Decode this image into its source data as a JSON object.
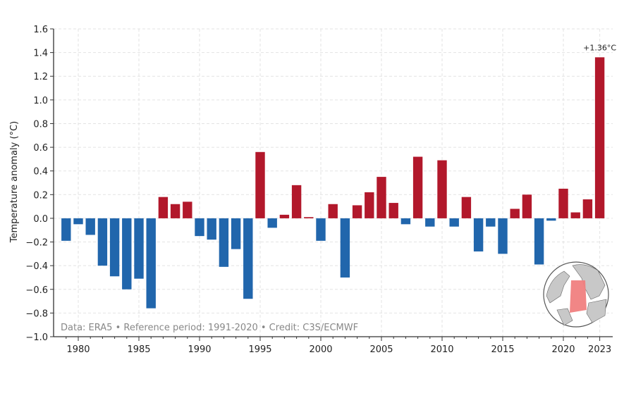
{
  "chart_data": {
    "type": "bar",
    "title": "",
    "xlabel": "",
    "ylabel": "Temperature anomaly (°C)",
    "ylim": [
      -1.0,
      1.6
    ],
    "yticks": [
      "1.6",
      "1.4",
      "1.2",
      "1.0",
      "0.8",
      "0.6",
      "0.4",
      "0.2",
      "0.0",
      "−0.2",
      "−0.4",
      "−0.6",
      "−0.8",
      "−1.0"
    ],
    "ytick_values": [
      1.6,
      1.4,
      1.2,
      1.0,
      0.8,
      0.6,
      0.4,
      0.2,
      0.0,
      -0.2,
      -0.4,
      -0.6,
      -0.8,
      -1.0
    ],
    "xticks": [
      "1980",
      "1985",
      "1990",
      "1995",
      "2000",
      "2005",
      "2010",
      "2015",
      "2020",
      "2023"
    ],
    "xtick_values": [
      1980,
      1985,
      1990,
      1995,
      2000,
      2005,
      2010,
      2015,
      2020,
      2023
    ],
    "grid": true,
    "categories": [
      1979,
      1980,
      1981,
      1982,
      1983,
      1984,
      1985,
      1986,
      1987,
      1988,
      1989,
      1990,
      1991,
      1992,
      1993,
      1994,
      1995,
      1996,
      1997,
      1998,
      1999,
      2000,
      2001,
      2002,
      2003,
      2004,
      2005,
      2006,
      2007,
      2008,
      2009,
      2010,
      2011,
      2012,
      2013,
      2014,
      2015,
      2016,
      2017,
      2018,
      2019,
      2020,
      2021,
      2022,
      2023
    ],
    "values": [
      -0.19,
      -0.05,
      -0.14,
      -0.4,
      -0.49,
      -0.6,
      -0.51,
      -0.76,
      0.18,
      0.12,
      0.14,
      -0.15,
      -0.18,
      -0.41,
      -0.26,
      -0.68,
      0.56,
      -0.08,
      0.03,
      0.28,
      0.01,
      -0.19,
      0.12,
      -0.5,
      0.11,
      0.22,
      0.35,
      0.13,
      -0.05,
      0.52,
      -0.07,
      0.49,
      -0.07,
      0.18,
      -0.28,
      -0.07,
      -0.3,
      0.08,
      0.2,
      -0.39,
      -0.02,
      0.25,
      0.05,
      0.16,
      1.36
    ],
    "colors": {
      "positive": "#b2182b",
      "negative": "#2166ac",
      "region": "#f08080"
    },
    "annotation": "+1.36°C",
    "credit": "Data: ERA5 • Reference period: 1991-2020 • Credit: C3S/ECMWF"
  }
}
